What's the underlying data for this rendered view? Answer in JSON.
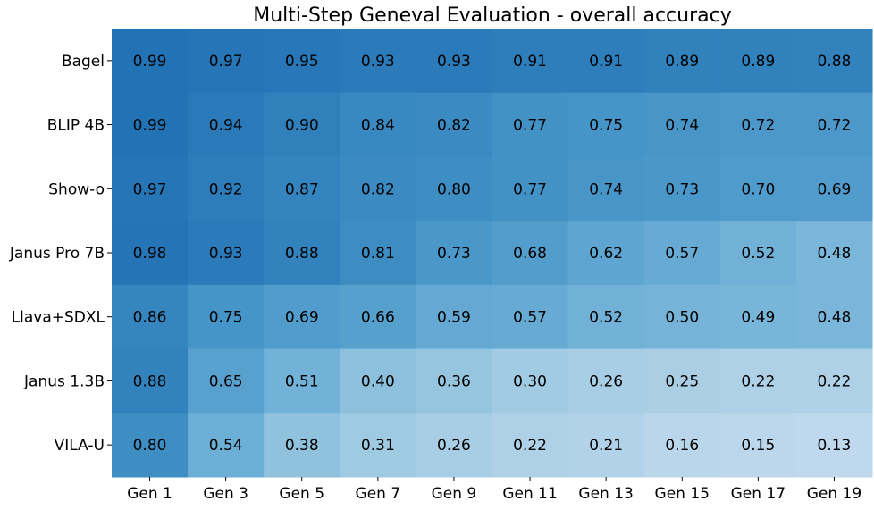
{
  "chart_data": {
    "type": "heatmap",
    "title": "Multi-Step Geneval Evaluation - overall accuracy",
    "x_categories": [
      "Gen 1",
      "Gen 3",
      "Gen 5",
      "Gen 7",
      "Gen 9",
      "Gen 11",
      "Gen 13",
      "Gen 15",
      "Gen 17",
      "Gen 19"
    ],
    "y_categories": [
      "Bagel",
      "BLIP 4B",
      "Show-o",
      "Janus Pro 7B",
      "Llava+SDXL",
      "Janus 1.3B",
      "VILA-U"
    ],
    "values": [
      [
        0.99,
        0.97,
        0.95,
        0.93,
        0.93,
        0.91,
        0.91,
        0.89,
        0.89,
        0.88
      ],
      [
        0.99,
        0.94,
        0.9,
        0.84,
        0.82,
        0.77,
        0.75,
        0.74,
        0.72,
        0.72
      ],
      [
        0.97,
        0.92,
        0.87,
        0.82,
        0.8,
        0.77,
        0.74,
        0.73,
        0.7,
        0.69
      ],
      [
        0.98,
        0.93,
        0.88,
        0.81,
        0.73,
        0.68,
        0.62,
        0.57,
        0.52,
        0.48
      ],
      [
        0.86,
        0.75,
        0.69,
        0.66,
        0.59,
        0.57,
        0.52,
        0.5,
        0.49,
        0.48
      ],
      [
        0.88,
        0.65,
        0.51,
        0.4,
        0.36,
        0.3,
        0.26,
        0.25,
        0.22,
        0.22
      ],
      [
        0.8,
        0.54,
        0.38,
        0.31,
        0.26,
        0.22,
        0.21,
        0.16,
        0.15,
        0.13
      ]
    ],
    "colormap": "Blues",
    "value_range": [
      0.0,
      1.0
    ],
    "cell_labels": true,
    "grid": false
  }
}
